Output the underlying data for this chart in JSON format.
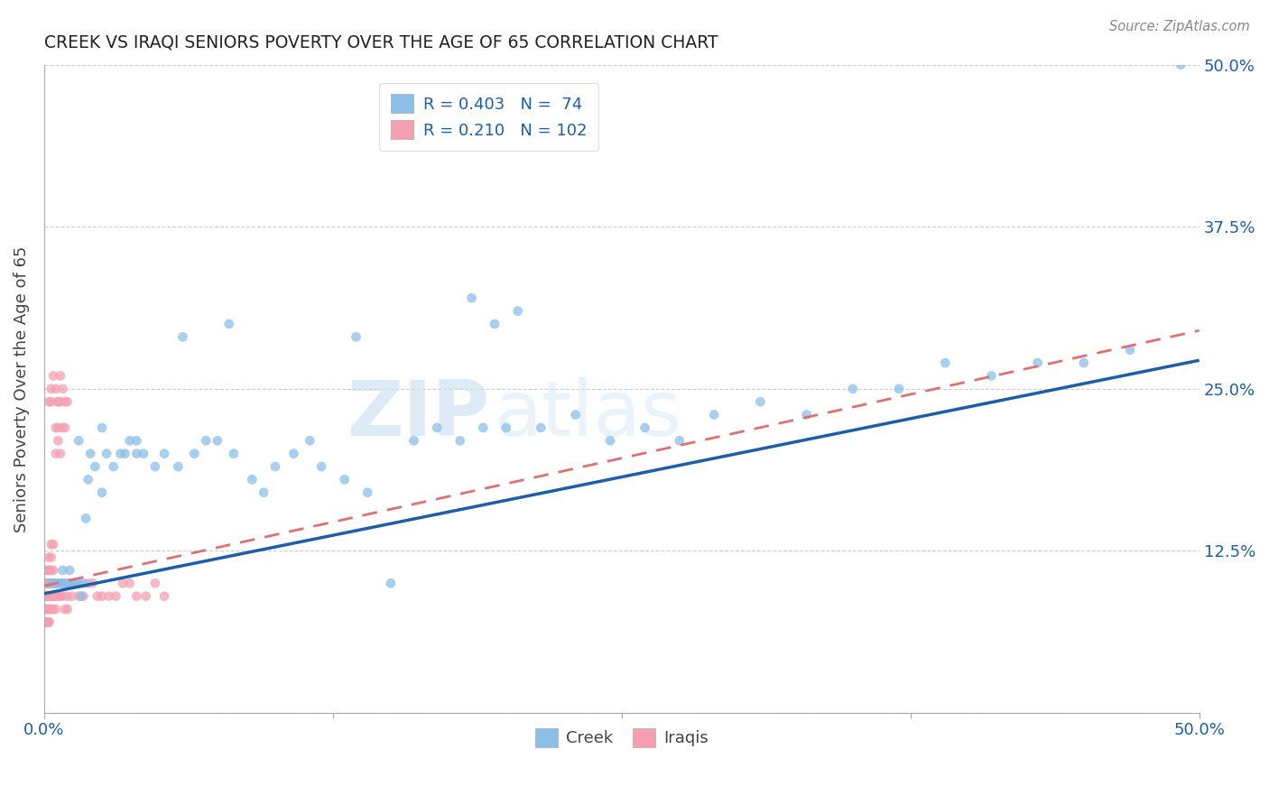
{
  "title": "CREEK VS IRAQI SENIORS POVERTY OVER THE AGE OF 65 CORRELATION CHART",
  "source": "Source: ZipAtlas.com",
  "ylabel": "Seniors Poverty Over the Age of 65",
  "xlim": [
    0,
    0.5
  ],
  "ylim": [
    0,
    0.5
  ],
  "xtick_vals": [
    0.0,
    0.125,
    0.25,
    0.375,
    0.5
  ],
  "ytick_vals": [
    0.0,
    0.125,
    0.25,
    0.375,
    0.5
  ],
  "creek_color": "#8bbfe8",
  "iraqis_color": "#f4a0b0",
  "creek_line_color": "#1a5fa8",
  "iraqis_line_color": "#e07070",
  "legend_text_color": "#1a5fa8",
  "tick_color": "#1a5fa8",
  "creek_R": 0.403,
  "creek_N": 74,
  "iraqis_R": 0.21,
  "iraqis_N": 102,
  "watermark": "ZIPatlas",
  "background_color": "#ffffff",
  "grid_color": "#c8c8c8",
  "creek_line_x0": 0.0,
  "creek_line_y0": 0.092,
  "creek_line_x1": 0.5,
  "creek_line_y1": 0.272,
  "iraqis_line_x0": 0.0,
  "iraqis_line_y0": 0.098,
  "iraqis_line_x1": 0.5,
  "iraqis_line_y1": 0.295,
  "creek_x": [
    0.003,
    0.004,
    0.005,
    0.006,
    0.007,
    0.008,
    0.009,
    0.01,
    0.011,
    0.012,
    0.013,
    0.014,
    0.015,
    0.016,
    0.017,
    0.018,
    0.019,
    0.02,
    0.022,
    0.025,
    0.027,
    0.03,
    0.033,
    0.035,
    0.037,
    0.04,
    0.043,
    0.048,
    0.052,
    0.058,
    0.065,
    0.07,
    0.075,
    0.082,
    0.09,
    0.095,
    0.1,
    0.108,
    0.115,
    0.12,
    0.13,
    0.14,
    0.15,
    0.16,
    0.17,
    0.18,
    0.19,
    0.2,
    0.215,
    0.23,
    0.245,
    0.26,
    0.275,
    0.29,
    0.31,
    0.33,
    0.35,
    0.37,
    0.39,
    0.41,
    0.43,
    0.45,
    0.47,
    0.492,
    0.185,
    0.195,
    0.205,
    0.135,
    0.08,
    0.06,
    0.04,
    0.025,
    0.015,
    0.008
  ],
  "creek_y": [
    0.1,
    0.1,
    0.1,
    0.1,
    0.1,
    0.11,
    0.1,
    0.1,
    0.11,
    0.1,
    0.1,
    0.1,
    0.1,
    0.09,
    0.1,
    0.15,
    0.18,
    0.2,
    0.19,
    0.17,
    0.2,
    0.19,
    0.2,
    0.2,
    0.21,
    0.2,
    0.2,
    0.19,
    0.2,
    0.19,
    0.2,
    0.21,
    0.21,
    0.2,
    0.18,
    0.17,
    0.19,
    0.2,
    0.21,
    0.19,
    0.18,
    0.17,
    0.1,
    0.21,
    0.22,
    0.21,
    0.22,
    0.22,
    0.22,
    0.23,
    0.21,
    0.22,
    0.21,
    0.23,
    0.24,
    0.23,
    0.25,
    0.25,
    0.27,
    0.26,
    0.27,
    0.27,
    0.28,
    0.5,
    0.32,
    0.3,
    0.31,
    0.29,
    0.3,
    0.29,
    0.21,
    0.22,
    0.21,
    0.1
  ],
  "iraqis_x": [
    0.001,
    0.001,
    0.001,
    0.001,
    0.001,
    0.001,
    0.001,
    0.001,
    0.001,
    0.001,
    0.002,
    0.002,
    0.002,
    0.002,
    0.002,
    0.002,
    0.002,
    0.002,
    0.002,
    0.002,
    0.003,
    0.003,
    0.003,
    0.003,
    0.003,
    0.003,
    0.003,
    0.003,
    0.003,
    0.004,
    0.004,
    0.004,
    0.004,
    0.004,
    0.004,
    0.004,
    0.005,
    0.005,
    0.005,
    0.005,
    0.005,
    0.006,
    0.006,
    0.006,
    0.006,
    0.007,
    0.007,
    0.007,
    0.008,
    0.008,
    0.008,
    0.009,
    0.009,
    0.01,
    0.01,
    0.011,
    0.012,
    0.013,
    0.014,
    0.015,
    0.017,
    0.019,
    0.021,
    0.023,
    0.025,
    0.028,
    0.031,
    0.034,
    0.037,
    0.04,
    0.044,
    0.048,
    0.052,
    0.01,
    0.009,
    0.008,
    0.007,
    0.006,
    0.005,
    0.004,
    0.003,
    0.003,
    0.002,
    0.002,
    0.002,
    0.001,
    0.001,
    0.001,
    0.001,
    0.001,
    0.001,
    0.001,
    0.001,
    0.001,
    0.001,
    0.001,
    0.001,
    0.001,
    0.001,
    0.001,
    0.001,
    0.001
  ],
  "iraqis_y": [
    0.09,
    0.1,
    0.08,
    0.07,
    0.09,
    0.1,
    0.11,
    0.08,
    0.09,
    0.1,
    0.08,
    0.09,
    0.1,
    0.11,
    0.08,
    0.07,
    0.09,
    0.1,
    0.11,
    0.12,
    0.09,
    0.1,
    0.11,
    0.08,
    0.09,
    0.1,
    0.12,
    0.13,
    0.08,
    0.09,
    0.1,
    0.11,
    0.08,
    0.09,
    0.1,
    0.13,
    0.08,
    0.09,
    0.1,
    0.2,
    0.22,
    0.09,
    0.21,
    0.22,
    0.24,
    0.09,
    0.2,
    0.24,
    0.09,
    0.22,
    0.1,
    0.08,
    0.22,
    0.08,
    0.09,
    0.1,
    0.09,
    0.1,
    0.1,
    0.09,
    0.09,
    0.1,
    0.1,
    0.09,
    0.09,
    0.09,
    0.09,
    0.1,
    0.1,
    0.09,
    0.09,
    0.1,
    0.09,
    0.24,
    0.24,
    0.25,
    0.26,
    0.24,
    0.25,
    0.26,
    0.24,
    0.25,
    0.24,
    0.07,
    0.07,
    0.07,
    0.07,
    0.07,
    0.07,
    0.07,
    0.07,
    0.07,
    0.07,
    0.07,
    0.07,
    0.07,
    0.07,
    0.07,
    0.07,
    0.07,
    0.07,
    0.07
  ]
}
